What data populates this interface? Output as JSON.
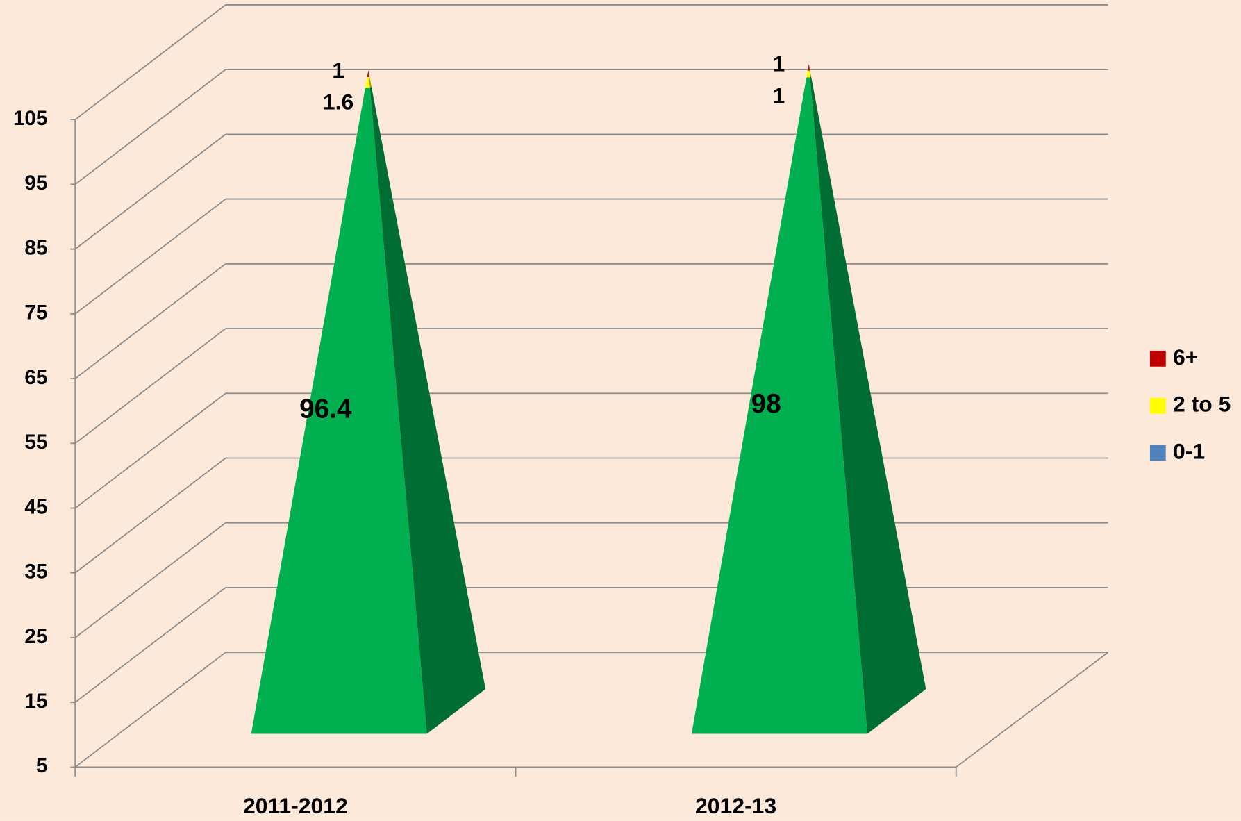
{
  "chart_data": {
    "type": "pyramid3d",
    "categories": [
      "2011-2012",
      "2012-13"
    ],
    "series": [
      {
        "name": "0-1",
        "color": "#00b050",
        "legend_color": "#4f81bd",
        "values": [
          96.4,
          98
        ]
      },
      {
        "name": "2 to 5",
        "color": "#ffff00",
        "legend_color": "#ffff00",
        "values": [
          1.6,
          1
        ]
      },
      {
        "name": "6+",
        "color": "#c00000",
        "legend_color": "#c00000",
        "values": [
          1,
          1
        ]
      }
    ],
    "ylim": [
      5,
      105
    ],
    "yticks": [
      5,
      15,
      25,
      35,
      45,
      55,
      65,
      75,
      85,
      95,
      105
    ],
    "grid": true,
    "legend": "right",
    "background": "#fde9d9"
  }
}
